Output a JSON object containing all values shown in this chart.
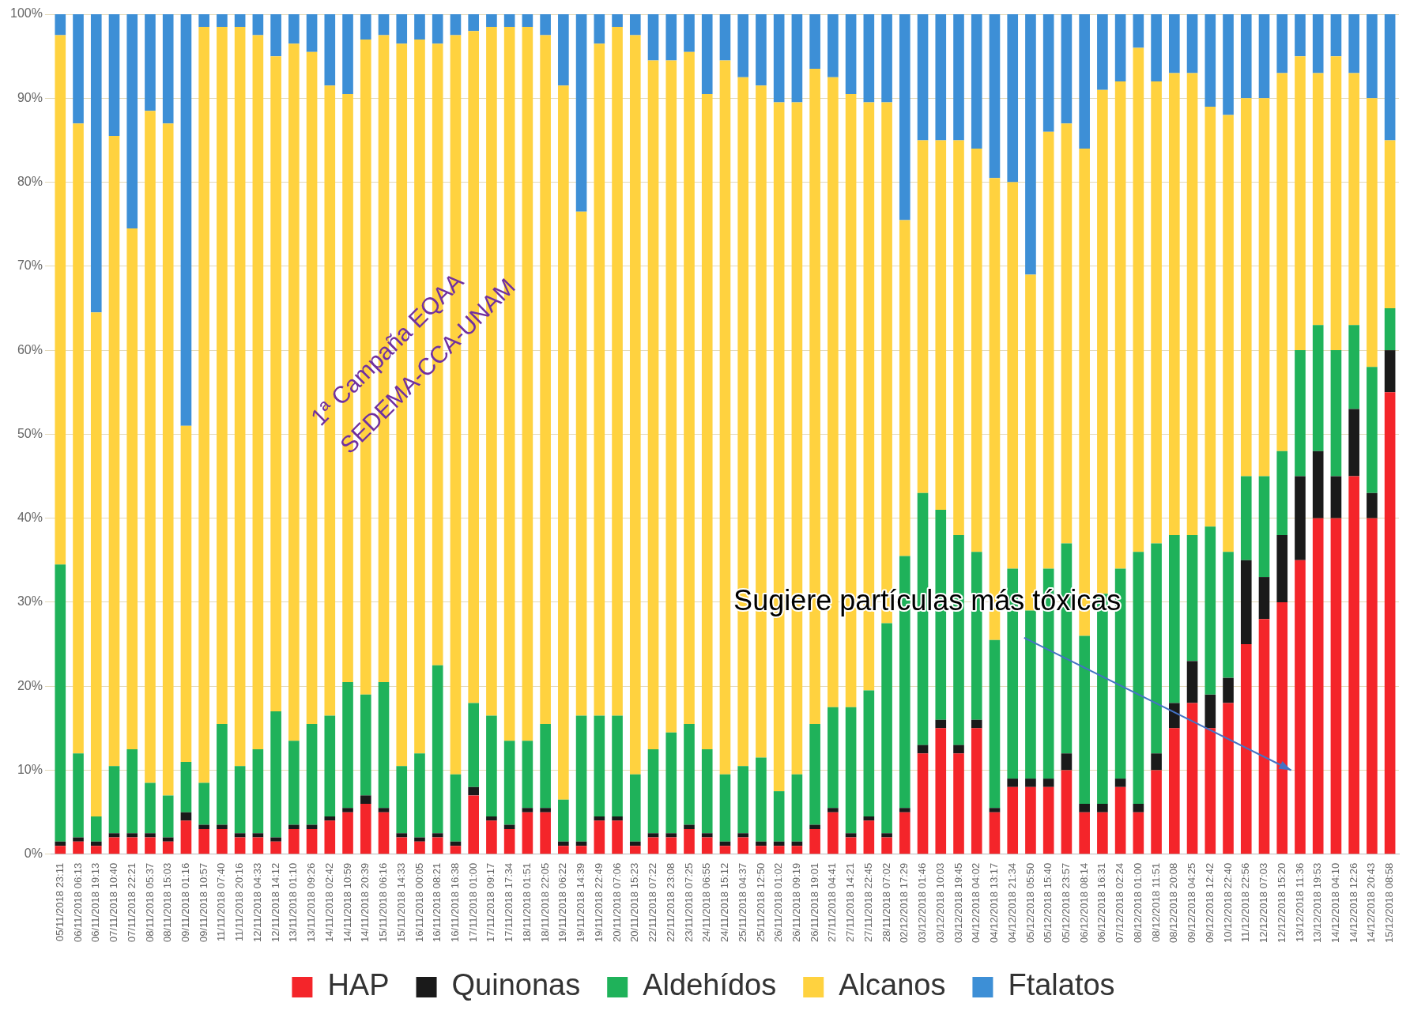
{
  "chart_data": {
    "type": "bar",
    "stacked": true,
    "legend": "bottom",
    "grid": "y",
    "categories": [
      "05/11/2018 23:11",
      "06/11/2018 06:13",
      "06/11/2018 19:13",
      "07/11/2018 10:40",
      "07/11/2018 22:21",
      "08/11/2018 05:37",
      "08/11/2018 15:03",
      "09/11/2018 01:16",
      "09/11/2018 10:57",
      "11/11/2018 07:40",
      "11/11/2018 20:16",
      "12/11/2018 04:33",
      "12/11/2018 14:12",
      "13/11/2018 01:10",
      "13/11/2018 09:26",
      "14/11/2018 02:42",
      "14/11/2018 10:59",
      "14/11/2018 20:39",
      "15/11/2018 06:16",
      "15/11/2018 14:33",
      "16/11/2018 00:05",
      "16/11/2018 08:21",
      "16/11/2018 16:38",
      "17/11/2018 01:00",
      "17/11/2018 09:17",
      "17/11/2018 17:34",
      "18/11/2018 01:51",
      "18/11/2018 22:05",
      "19/11/2018 06:22",
      "19/11/2018 14:39",
      "19/11/2018 22:49",
      "20/11/2018 07:06",
      "20/11/2018 15:23",
      "22/11/2018 07:22",
      "22/11/2018 23:08",
      "23/11/2018 07:25",
      "24/11/2018 06:55",
      "24/11/2018 15:12",
      "25/11/2018 04:37",
      "25/11/2018 12:50",
      "26/11/2018 01:02",
      "26/11/2018 09:19",
      "26/11/2018 19:01",
      "27/11/2018 04:41",
      "27/11/2018 14:21",
      "27/11/2018 22:45",
      "28/11/2018 07:02",
      "02/12/2018 17:29",
      "03/12/2018 01:46",
      "03/12/2018 10:03",
      "03/12/2018 19:45",
      "04/12/2018 04:02",
      "04/12/2018 13:17",
      "04/12/2018 21:34",
      "05/12/2018 05:50",
      "05/12/2018 15:40",
      "05/12/2018 23:57",
      "06/12/2018 08:14",
      "06/12/2018 16:31",
      "07/12/2018 02:24",
      "08/12/2018 01:00",
      "08/12/2018 11:51",
      "08/12/2018 20:08",
      "09/12/2018 04:25",
      "09/12/2018 12:42",
      "10/12/2018 22:40",
      "11/12/2018 22:56",
      "12/12/2018 07:03",
      "12/12/2018 15:20",
      "13/12/2018 11:36",
      "13/12/2018 19:53",
      "14/12/2018 04:10",
      "14/12/2018 12:26",
      "14/12/2018 20:43",
      "15/12/2018 08:58"
    ],
    "series": [
      {
        "name": "HAP",
        "color": "#f4252a",
        "values": [
          1,
          1.5,
          1,
          2,
          2,
          2,
          1.5,
          4,
          3,
          3,
          2,
          2,
          1.5,
          3,
          3,
          4,
          5,
          6,
          5,
          2,
          1.5,
          2,
          1,
          7,
          4,
          3,
          5,
          5,
          1,
          1,
          4,
          4,
          1,
          2,
          2,
          3,
          2,
          1,
          2,
          1,
          1,
          1,
          3,
          5,
          2,
          4,
          2,
          5,
          12,
          15,
          12,
          15,
          5,
          8,
          8,
          8,
          10,
          5,
          5,
          8,
          5,
          10,
          15,
          18,
          15,
          18,
          25,
          28,
          30,
          35,
          40,
          40,
          45,
          40,
          55
        ]
      },
      {
        "name": "Quinonas",
        "color": "#1a1a1a",
        "values": [
          0.5,
          0.5,
          0.5,
          0.5,
          0.5,
          0.5,
          0.5,
          1,
          0.5,
          0.5,
          0.5,
          0.5,
          0.5,
          0.5,
          0.5,
          0.5,
          0.5,
          1,
          0.5,
          0.5,
          0.5,
          0.5,
          0.5,
          1,
          0.5,
          0.5,
          0.5,
          0.5,
          0.5,
          0.5,
          0.5,
          0.5,
          0.5,
          0.5,
          0.5,
          0.5,
          0.5,
          0.5,
          0.5,
          0.5,
          0.5,
          0.5,
          0.5,
          0.5,
          0.5,
          0.5,
          0.5,
          0.5,
          1,
          1,
          1,
          1,
          0.5,
          1,
          1,
          1,
          2,
          1,
          1,
          1,
          1,
          2,
          3,
          5,
          4,
          3,
          10,
          5,
          8,
          10,
          8,
          5,
          8,
          3,
          5
        ]
      },
      {
        "name": "Aldehídos",
        "color": "#1fb25a",
        "values": [
          33,
          10,
          3,
          8,
          10,
          6,
          5,
          6,
          5,
          12,
          8,
          10,
          15,
          10,
          12,
          12,
          15,
          12,
          15,
          8,
          10,
          20,
          8,
          10,
          12,
          10,
          8,
          10,
          5,
          15,
          12,
          12,
          8,
          10,
          12,
          12,
          10,
          8,
          8,
          10,
          6,
          8,
          12,
          12,
          15,
          15,
          25,
          30,
          30,
          25,
          25,
          20,
          20,
          25,
          20,
          25,
          25,
          20,
          25,
          25,
          30,
          25,
          20,
          15,
          20,
          15,
          10,
          12,
          10,
          15,
          15,
          15,
          10,
          15,
          5
        ]
      },
      {
        "name": "Alcanos",
        "color": "#ffd23f",
        "values": [
          63,
          75,
          60,
          75,
          62,
          80,
          80,
          40,
          90,
          83,
          88,
          85,
          78,
          83,
          80,
          75,
          70,
          78,
          77,
          86,
          85,
          74,
          88,
          80,
          82,
          85,
          85,
          82,
          85,
          60,
          80,
          82,
          88,
          82,
          80,
          80,
          78,
          85,
          82,
          80,
          82,
          80,
          78,
          75,
          73,
          70,
          62,
          40,
          42,
          44,
          47,
          48,
          55,
          46,
          40,
          52,
          50,
          58,
          60,
          58,
          60,
          55,
          55,
          55,
          50,
          52,
          45,
          45,
          45,
          35,
          30,
          35,
          30,
          32,
          20
        ]
      },
      {
        "name": "Ftalatos",
        "color": "#3d8fd6",
        "values": [
          2.5,
          13,
          35.5,
          14.5,
          25.5,
          11.5,
          13,
          49,
          1.5,
          1.5,
          1.5,
          2.5,
          5,
          3.5,
          4.5,
          8.5,
          9.5,
          3,
          2.5,
          3.5,
          3,
          3.5,
          2.5,
          2,
          1.5,
          1.5,
          1.5,
          2.5,
          8.5,
          23.5,
          3.5,
          1.5,
          2.5,
          5.5,
          5.5,
          4.5,
          9.5,
          5.5,
          7.5,
          8.5,
          10.5,
          10.5,
          6.5,
          7.5,
          9.5,
          10.5,
          10.5,
          24.5,
          15,
          15,
          15,
          16,
          19.5,
          20,
          31,
          14,
          13,
          16,
          9,
          8,
          4,
          8,
          7,
          7,
          11,
          12,
          10,
          10,
          7,
          5,
          7,
          5,
          7,
          10,
          15
        ]
      }
    ],
    "ylim": [
      0,
      100
    ],
    "yticks": [
      {
        "value": 0,
        "label": "0%"
      },
      {
        "value": 10,
        "label": "10%"
      },
      {
        "value": 20,
        "label": "20%"
      },
      {
        "value": 30,
        "label": "30%"
      },
      {
        "value": 40,
        "label": "40%"
      },
      {
        "value": 50,
        "label": "50%"
      },
      {
        "value": 60,
        "label": "60%"
      },
      {
        "value": 70,
        "label": "70%"
      },
      {
        "value": 80,
        "label": "80%"
      },
      {
        "value": 90,
        "label": "90%"
      },
      {
        "value": 100,
        "label": "100%"
      }
    ],
    "annotations": [
      "1ª Campaña EQAA",
      "SEDEMA-CCA-UNAM",
      "Sugiere partículas más tóxicas"
    ]
  }
}
